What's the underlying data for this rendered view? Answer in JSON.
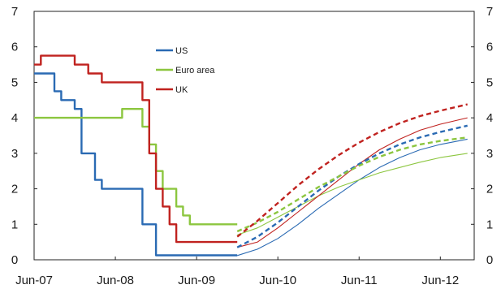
{
  "chart_data": {
    "type": "line",
    "title": "",
    "xlabel": "",
    "ylabel": "",
    "x_tick_labels": [
      "Jun-07",
      "Jun-08",
      "Jun-09",
      "Jun-10",
      "Jun-11",
      "Jun-12"
    ],
    "y_ticks": [
      0,
      1,
      2,
      3,
      4,
      5,
      6,
      7
    ],
    "xlim": [
      "2007-06",
      "2012-11"
    ],
    "ylim": [
      0,
      7
    ],
    "grid": false,
    "legend_position": "top-left",
    "y_axis_labels_both_sides": true,
    "series": [
      {
        "name": "US",
        "color": "#2a6ab3",
        "style": "step",
        "points": [
          [
            "2007-06",
            5.25
          ],
          [
            "2007-09",
            4.75
          ],
          [
            "2007-10",
            4.5
          ],
          [
            "2007-12",
            4.25
          ],
          [
            "2008-01",
            3.5
          ],
          [
            "2008-01",
            3.0
          ],
          [
            "2008-03",
            2.25
          ],
          [
            "2008-04",
            2.0
          ],
          [
            "2008-10",
            1.5
          ],
          [
            "2008-10",
            1.0
          ],
          [
            "2008-12",
            0.125
          ],
          [
            "2009-12",
            0.125
          ]
        ]
      },
      {
        "name": "Euro area",
        "color": "#8cc63f",
        "style": "step",
        "points": [
          [
            "2007-06",
            4.0
          ],
          [
            "2008-07",
            4.25
          ],
          [
            "2008-10",
            3.75
          ],
          [
            "2008-11",
            3.25
          ],
          [
            "2008-12",
            2.5
          ],
          [
            "2009-01",
            2.0
          ],
          [
            "2009-03",
            1.5
          ],
          [
            "2009-04",
            1.25
          ],
          [
            "2009-05",
            1.0
          ],
          [
            "2009-12",
            1.0
          ]
        ]
      },
      {
        "name": "UK",
        "color": "#c0221f",
        "style": "step",
        "points": [
          [
            "2007-06",
            5.5
          ],
          [
            "2007-07",
            5.75
          ],
          [
            "2007-12",
            5.5
          ],
          [
            "2008-02",
            5.25
          ],
          [
            "2008-04",
            5.0
          ],
          [
            "2008-10",
            4.5
          ],
          [
            "2008-11",
            3.0
          ],
          [
            "2008-12",
            2.0
          ],
          [
            "2009-01",
            1.5
          ],
          [
            "2009-02",
            1.0
          ],
          [
            "2009-03",
            0.5
          ],
          [
            "2009-12",
            0.5
          ]
        ]
      },
      {
        "name": "",
        "color": "#2a6ab3",
        "style": "thin",
        "points": [
          [
            "2009-12",
            0.12
          ],
          [
            "2010-03",
            0.3
          ],
          [
            "2010-06",
            0.6
          ],
          [
            "2010-09",
            1.0
          ],
          [
            "2010-12",
            1.45
          ],
          [
            "2011-03",
            1.85
          ],
          [
            "2011-06",
            2.25
          ],
          [
            "2011-09",
            2.6
          ],
          [
            "2011-12",
            2.88
          ],
          [
            "2012-03",
            3.1
          ],
          [
            "2012-06",
            3.25
          ],
          [
            "2012-10",
            3.4
          ]
        ]
      },
      {
        "name": "",
        "color": "#8cc63f",
        "style": "thin",
        "points": [
          [
            "2009-12",
            0.7
          ],
          [
            "2010-03",
            0.9
          ],
          [
            "2010-06",
            1.2
          ],
          [
            "2010-09",
            1.5
          ],
          [
            "2010-12",
            1.8
          ],
          [
            "2011-03",
            2.05
          ],
          [
            "2011-06",
            2.25
          ],
          [
            "2011-09",
            2.45
          ],
          [
            "2011-12",
            2.6
          ],
          [
            "2012-03",
            2.75
          ],
          [
            "2012-06",
            2.88
          ],
          [
            "2012-10",
            3.0
          ]
        ]
      },
      {
        "name": "",
        "color": "#c0221f",
        "style": "thin",
        "points": [
          [
            "2009-12",
            0.35
          ],
          [
            "2010-03",
            0.5
          ],
          [
            "2010-06",
            0.9
          ],
          [
            "2010-09",
            1.35
          ],
          [
            "2010-12",
            1.8
          ],
          [
            "2011-03",
            2.25
          ],
          [
            "2011-06",
            2.7
          ],
          [
            "2011-09",
            3.1
          ],
          [
            "2011-12",
            3.4
          ],
          [
            "2012-03",
            3.65
          ],
          [
            "2012-06",
            3.82
          ],
          [
            "2012-10",
            4.0
          ]
        ]
      },
      {
        "name": "",
        "color": "#2a6ab3",
        "style": "dashed",
        "points": [
          [
            "2009-12",
            0.35
          ],
          [
            "2010-03",
            0.65
          ],
          [
            "2010-06",
            1.05
          ],
          [
            "2010-09",
            1.5
          ],
          [
            "2010-12",
            1.95
          ],
          [
            "2011-03",
            2.35
          ],
          [
            "2011-06",
            2.7
          ],
          [
            "2011-09",
            3.0
          ],
          [
            "2011-12",
            3.25
          ],
          [
            "2012-03",
            3.45
          ],
          [
            "2012-06",
            3.6
          ],
          [
            "2012-10",
            3.78
          ]
        ]
      },
      {
        "name": "",
        "color": "#8cc63f",
        "style": "dashed",
        "points": [
          [
            "2009-12",
            0.8
          ],
          [
            "2010-03",
            1.05
          ],
          [
            "2010-06",
            1.35
          ],
          [
            "2010-09",
            1.7
          ],
          [
            "2010-12",
            2.05
          ],
          [
            "2011-03",
            2.35
          ],
          [
            "2011-06",
            2.65
          ],
          [
            "2011-09",
            2.9
          ],
          [
            "2011-12",
            3.1
          ],
          [
            "2012-03",
            3.25
          ],
          [
            "2012-06",
            3.35
          ],
          [
            "2012-10",
            3.45
          ]
        ]
      },
      {
        "name": "",
        "color": "#c0221f",
        "style": "dashed",
        "points": [
          [
            "2009-12",
            0.65
          ],
          [
            "2010-03",
            1.1
          ],
          [
            "2010-06",
            1.6
          ],
          [
            "2010-09",
            2.1
          ],
          [
            "2010-12",
            2.55
          ],
          [
            "2011-03",
            2.95
          ],
          [
            "2011-06",
            3.3
          ],
          [
            "2011-09",
            3.6
          ],
          [
            "2011-12",
            3.85
          ],
          [
            "2012-03",
            4.05
          ],
          [
            "2012-06",
            4.2
          ],
          [
            "2012-10",
            4.38
          ]
        ]
      }
    ]
  }
}
